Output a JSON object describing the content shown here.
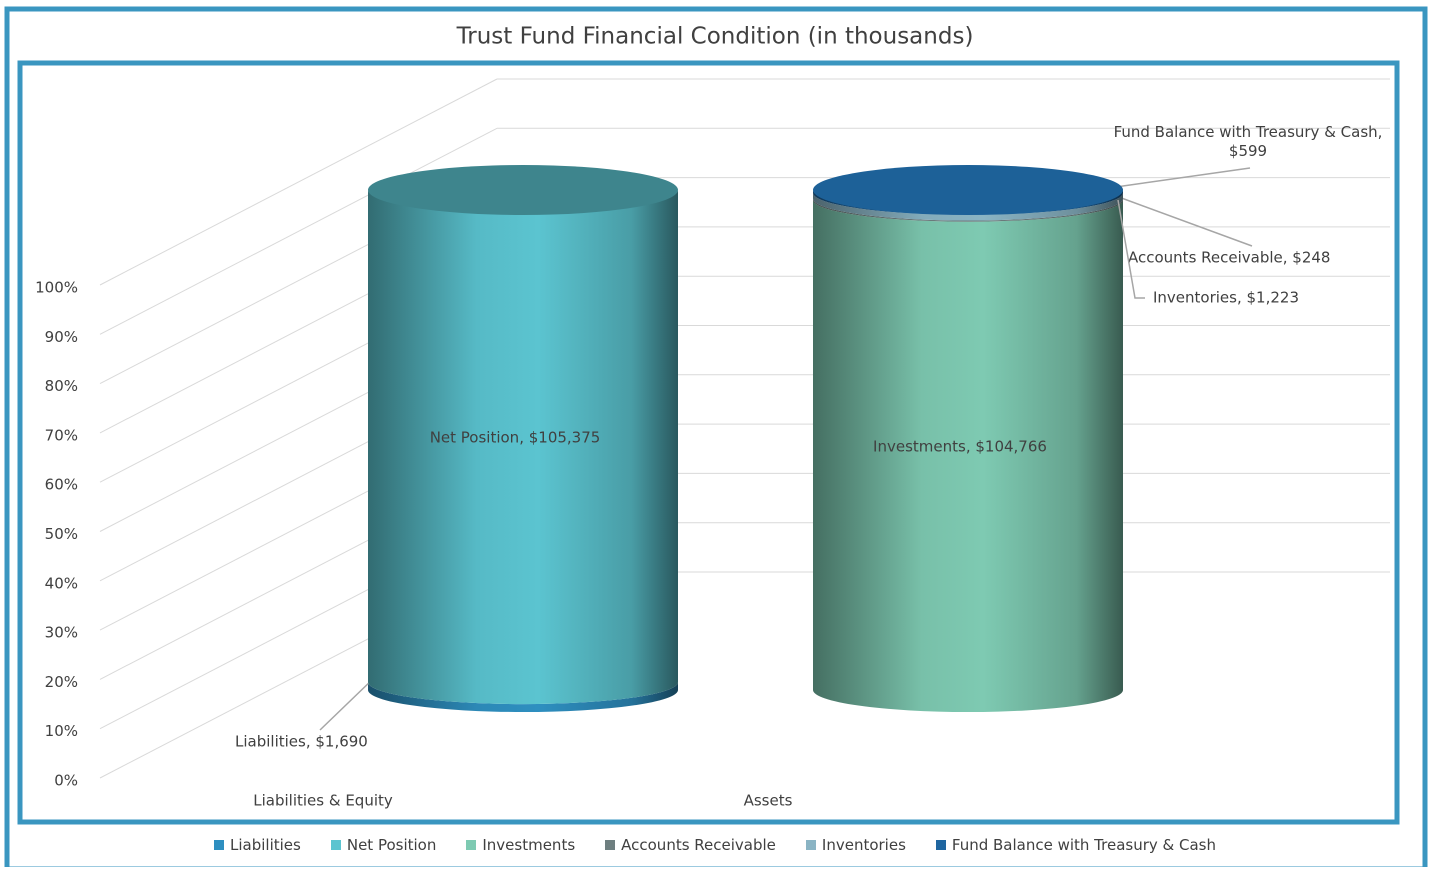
{
  "chart_data": {
    "type": "stacked_cylinder_100",
    "title": "Trust Fund Financial Condition (in thousands)",
    "categories": [
      "Liabilities & Equity",
      "Assets"
    ],
    "series": [
      {
        "name": "Liabilities",
        "color": "#2e8fc0",
        "values": [
          1690,
          null
        ],
        "value_labels": [
          "Liabilities, $1,690",
          null
        ]
      },
      {
        "name": "Net Position",
        "color": "#5bc4d0",
        "values": [
          105375,
          null
        ],
        "value_labels": [
          "Net Position, $105,375",
          null
        ]
      },
      {
        "name": "Investments",
        "color": "#7ecab2",
        "values": [
          null,
          104766
        ],
        "value_labels": [
          null,
          "Investments, $104,766"
        ]
      },
      {
        "name": "Accounts Receivable",
        "color": "#6e7f80",
        "values": [
          null,
          248
        ],
        "value_labels": [
          null,
          "Accounts Receivable, $248"
        ]
      },
      {
        "name": "Inventories",
        "color": "#8ab4c4",
        "values": [
          null,
          1223
        ],
        "value_labels": [
          null,
          "Inventories, $1,223"
        ]
      },
      {
        "name": "Fund Balance with Treasury & Cash",
        "color": "#1f66a0",
        "values": [
          null,
          599
        ],
        "value_labels": [
          null,
          "Fund Balance with Treasury & Cash, $599"
        ]
      }
    ],
    "ylim": [
      0,
      100
    ],
    "yticks": [
      {
        "value": 0,
        "label": "0%"
      },
      {
        "value": 10,
        "label": "10%"
      },
      {
        "value": 20,
        "label": "20%"
      },
      {
        "value": 30,
        "label": "30%"
      },
      {
        "value": 40,
        "label": "40%"
      },
      {
        "value": 50,
        "label": "50%"
      },
      {
        "value": 60,
        "label": "60%"
      },
      {
        "value": 70,
        "label": "70%"
      },
      {
        "value": 80,
        "label": "80%"
      },
      {
        "value": 90,
        "label": "90%"
      },
      {
        "value": 100,
        "label": "100%"
      }
    ],
    "grid": true,
    "legend": "bottom"
  }
}
